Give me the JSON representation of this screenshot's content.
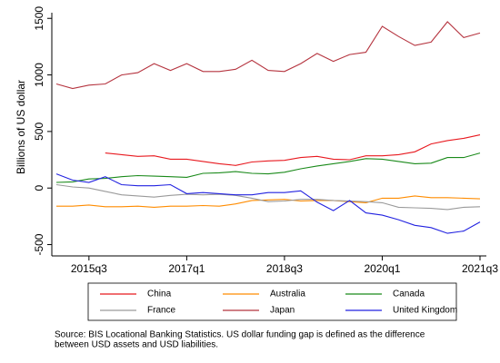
{
  "chart_data": {
    "type": "line",
    "y_label": "Billions of US dollar",
    "categories": [
      null,
      null,
      "2015q3",
      null,
      null,
      null,
      null,
      null,
      "2017q1",
      null,
      null,
      null,
      null,
      null,
      "2018q3",
      null,
      null,
      null,
      null,
      null,
      "2020q1",
      null,
      null,
      null,
      null,
      null,
      "2021q3"
    ],
    "ylim": [
      -600,
      1550
    ],
    "yticks": [
      -500,
      0,
      500,
      1000,
      1500
    ],
    "series": [
      {
        "name": "China",
        "color": "#e8191f",
        "values": [
          null,
          null,
          null,
          310,
          295,
          280,
          285,
          255,
          255,
          235,
          215,
          200,
          230,
          240,
          245,
          270,
          280,
          255,
          250,
          285,
          285,
          295,
          320,
          390,
          420,
          440,
          470
        ]
      },
      {
        "name": "Australia",
        "color": "#ff8c00",
        "values": [
          -160,
          -160,
          -150,
          -165,
          -165,
          -160,
          -170,
          -160,
          -160,
          -155,
          -160,
          -140,
          -110,
          -105,
          -100,
          -115,
          -110,
          -110,
          -120,
          -130,
          -90,
          -90,
          -70,
          -85,
          -85,
          -90,
          -95
        ]
      },
      {
        "name": "Canada",
        "color": "#1a8a1a",
        "values": [
          50,
          55,
          80,
          85,
          100,
          110,
          105,
          100,
          95,
          130,
          135,
          145,
          130,
          125,
          140,
          170,
          195,
          215,
          235,
          260,
          255,
          235,
          215,
          220,
          270,
          270,
          310
        ]
      },
      {
        "name": "France",
        "color": "#9a9a9a",
        "values": [
          30,
          10,
          0,
          -30,
          -60,
          -70,
          -80,
          -65,
          -55,
          -60,
          -55,
          -65,
          -90,
          -120,
          -115,
          -100,
          -100,
          -110,
          -115,
          -120,
          -130,
          -170,
          -175,
          -180,
          -190,
          -170,
          -165
        ]
      },
      {
        "name": "Japan",
        "color": "#b5343f",
        "values": [
          920,
          880,
          910,
          920,
          1000,
          1020,
          1100,
          1040,
          1100,
          1030,
          1030,
          1050,
          1130,
          1040,
          1030,
          1100,
          1190,
          1120,
          1180,
          1200,
          1430,
          1340,
          1260,
          1290,
          1470,
          1330,
          1370
        ]
      },
      {
        "name": "United Kingdom",
        "color": "#2222e0",
        "values": [
          125,
          70,
          50,
          100,
          30,
          20,
          20,
          30,
          -50,
          -40,
          -50,
          -60,
          -60,
          -40,
          -40,
          -25,
          -125,
          -200,
          -110,
          -220,
          -240,
          -280,
          -330,
          -350,
          -400,
          -380,
          -300
        ]
      }
    ],
    "source": [
      "Source: BIS Locational Banking Statistics. US dollar funding gap is defined as the difference",
      "between USD assets and USD liabilities."
    ]
  }
}
